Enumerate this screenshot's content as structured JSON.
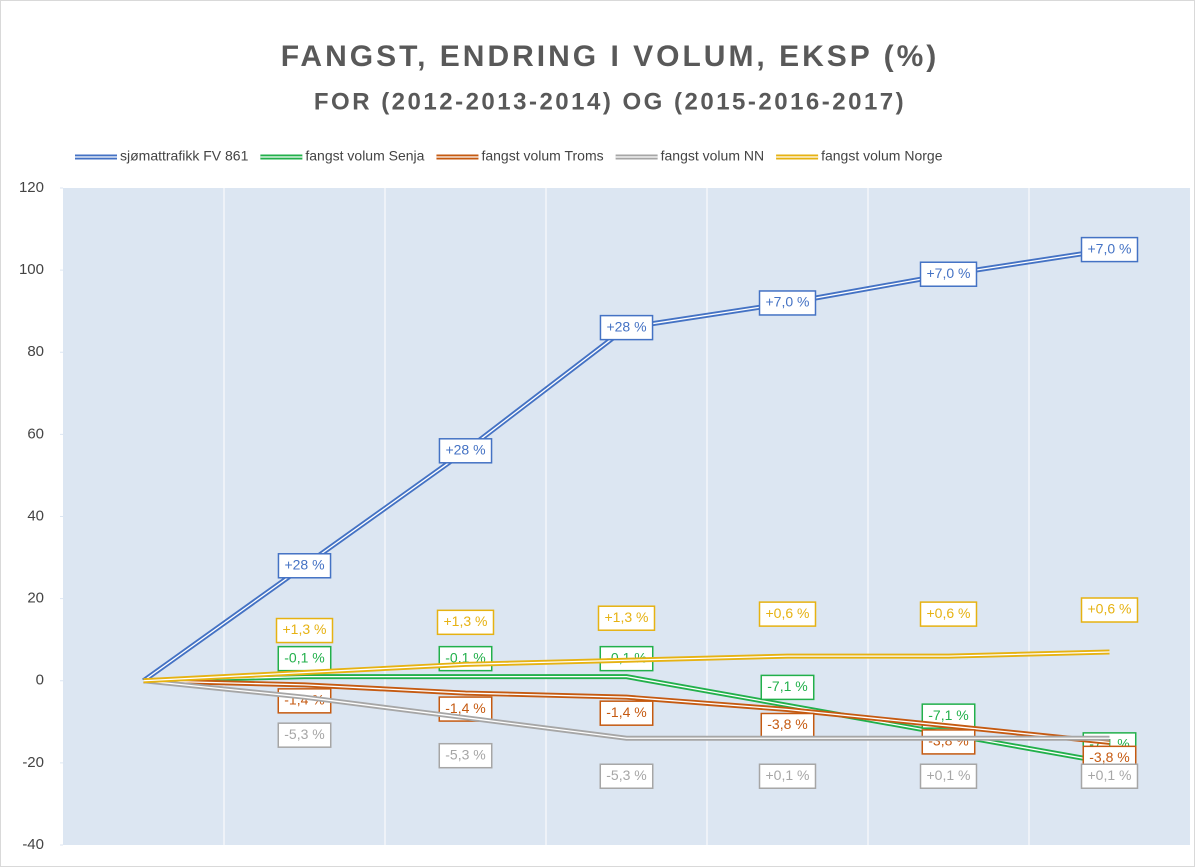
{
  "chart_data": {
    "type": "line",
    "title": "FANGST, ENDRING I VOLUM, EKSP (%)",
    "subtitle": "FOR (2012-2013-2014) OG (2015-2016-2017)",
    "categories": [
      null,
      null,
      null,
      null,
      null,
      null,
      null
    ],
    "ylim": [
      -40,
      120
    ],
    "yticks": [
      -40,
      -20,
      0,
      20,
      40,
      60,
      80,
      100,
      120
    ],
    "legend": "top",
    "series": [
      {
        "name": "sjømattrafikk FV 861",
        "color": "#4472c4",
        "values": [
          0,
          28,
          56,
          86,
          92,
          99,
          105
        ],
        "point_labels": [
          null,
          "+28 %",
          "+28 %",
          "+28 %",
          "+7,0 %",
          "+7,0 %",
          "+7,0 %"
        ]
      },
      {
        "name": "fangst volum Senja",
        "color": "#22b04b",
        "values": [
          0,
          1,
          1,
          1,
          -6,
          -13,
          -20
        ],
        "point_labels": [
          null,
          "-0,1 %",
          "-0,1 %",
          "-0,1 %",
          "-7,1 %",
          "-7,1 %",
          "-7,1 %"
        ]
      },
      {
        "name": "fangst volum Troms",
        "color": "#c55a11",
        "values": [
          0,
          -1,
          -3,
          -4,
          -7,
          -11,
          -15
        ],
        "point_labels": [
          null,
          "-1,4 %",
          "-1,4 %",
          "-1,4 %",
          "-3,8 %",
          "-3,8 %",
          "-3,8 %"
        ]
      },
      {
        "name": "fangst volum  NN",
        "color": "#a6a6a6",
        "values": [
          0,
          -4,
          -9,
          -14,
          -14,
          -14,
          -14
        ],
        "point_labels": [
          null,
          "-5,3 %",
          "-5,3 %",
          "-5,3 %",
          "+0,1 %",
          "+0,1 %",
          "+0,1 %"
        ]
      },
      {
        "name": "fangst volum Norge",
        "color": "#e6b212",
        "values": [
          0,
          2,
          4,
          5,
          6,
          6,
          7
        ],
        "point_labels": [
          null,
          "+1,3 %",
          "+1,3 %",
          "+1,3 %",
          "+0,6 %",
          "+0,6 %",
          "+0,6 %"
        ]
      }
    ]
  }
}
